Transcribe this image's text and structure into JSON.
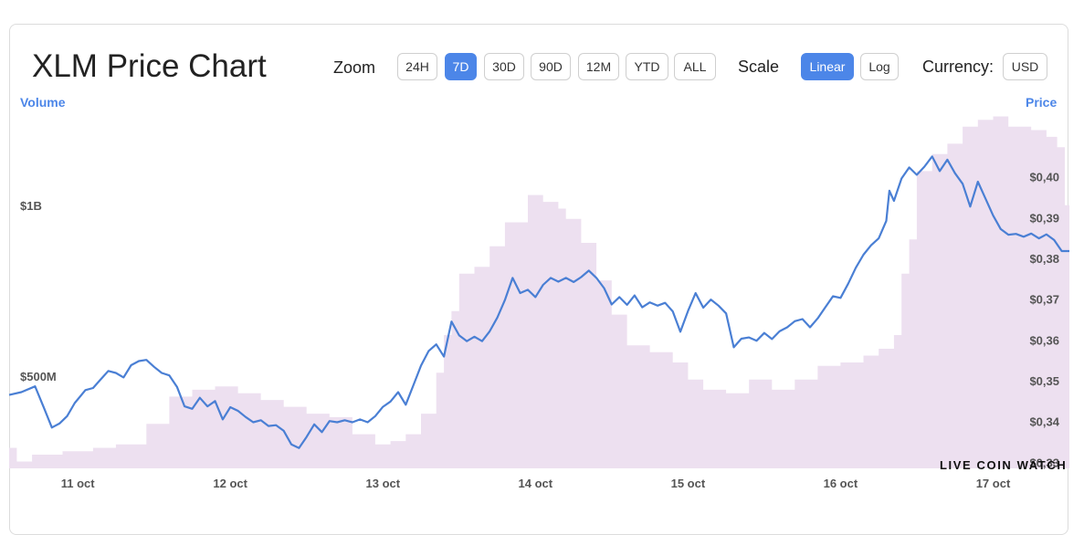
{
  "header": {
    "title": "XLM Price Chart",
    "zoom_label": "Zoom",
    "zoom_options": [
      "24H",
      "7D",
      "30D",
      "90D",
      "12M",
      "YTD",
      "ALL"
    ],
    "zoom_selected": "7D",
    "scale_label": "Scale",
    "scale_options": [
      "Linear",
      "Log"
    ],
    "scale_selected": "Linear",
    "currency_label": "Currency:",
    "currency_value": "USD"
  },
  "watermark": "LIVE COIN WATCH",
  "colors": {
    "accent": "#4c86e8",
    "price_line": "#4a7fd4",
    "volume_fill": "#ede0f0"
  },
  "chart_data": {
    "type": "line",
    "left_axis_title": "Volume",
    "right_axis_title": "Price",
    "x_tick_labels": [
      "11 oct",
      "12 oct",
      "13 oct",
      "14 oct",
      "15 oct",
      "16 oct",
      "17 oct"
    ],
    "x_range": [
      10.55,
      17.5
    ],
    "y_price_ticks": [
      "$0,40",
      "$0,39",
      "$0,38",
      "$0,37",
      "$0,36",
      "$0,35",
      "$0,34",
      "$0,33"
    ],
    "y_price_range": [
      0.3285,
      0.4165
    ],
    "y_volume_ticks": [
      "$1B",
      "$500M"
    ],
    "y_volume_range": [
      230000000,
      1280000000
    ],
    "grid": false,
    "series": [
      {
        "kind": "line",
        "axis": "price",
        "points": [
          [
            10.55,
            0.3465
          ],
          [
            10.63,
            0.3472
          ],
          [
            10.72,
            0.3486
          ],
          [
            10.78,
            0.3432
          ],
          [
            10.83,
            0.3385
          ],
          [
            10.88,
            0.3395
          ],
          [
            10.93,
            0.3413
          ],
          [
            10.98,
            0.3445
          ],
          [
            11.05,
            0.3477
          ],
          [
            11.1,
            0.3482
          ],
          [
            11.15,
            0.3503
          ],
          [
            11.2,
            0.3524
          ],
          [
            11.25,
            0.3519
          ],
          [
            11.3,
            0.3508
          ],
          [
            11.35,
            0.3538
          ],
          [
            11.4,
            0.3548
          ],
          [
            11.45,
            0.3551
          ],
          [
            11.5,
            0.3534
          ],
          [
            11.55,
            0.3519
          ],
          [
            11.6,
            0.3513
          ],
          [
            11.65,
            0.3485
          ],
          [
            11.7,
            0.3437
          ],
          [
            11.75,
            0.3431
          ],
          [
            11.8,
            0.3458
          ],
          [
            11.85,
            0.3437
          ],
          [
            11.9,
            0.345
          ],
          [
            11.95,
            0.3405
          ],
          [
            12.0,
            0.3435
          ],
          [
            12.05,
            0.3426
          ],
          [
            12.1,
            0.3411
          ],
          [
            12.15,
            0.3398
          ],
          [
            12.2,
            0.3403
          ],
          [
            12.25,
            0.3389
          ],
          [
            12.3,
            0.3391
          ],
          [
            12.35,
            0.3377
          ],
          [
            12.4,
            0.3344
          ],
          [
            12.45,
            0.3335
          ],
          [
            12.5,
            0.3362
          ],
          [
            12.55,
            0.3393
          ],
          [
            12.6,
            0.3374
          ],
          [
            12.65,
            0.3401
          ],
          [
            12.7,
            0.3398
          ],
          [
            12.75,
            0.3403
          ],
          [
            12.8,
            0.3398
          ],
          [
            12.85,
            0.3405
          ],
          [
            12.9,
            0.3398
          ],
          [
            12.95,
            0.3413
          ],
          [
            13.0,
            0.3436
          ],
          [
            13.05,
            0.3449
          ],
          [
            13.1,
            0.3472
          ],
          [
            13.15,
            0.3441
          ],
          [
            13.2,
            0.3489
          ],
          [
            13.25,
            0.3537
          ],
          [
            13.3,
            0.3573
          ],
          [
            13.35,
            0.3589
          ],
          [
            13.4,
            0.3559
          ],
          [
            13.45,
            0.3645
          ],
          [
            13.5,
            0.3611
          ],
          [
            13.55,
            0.3597
          ],
          [
            13.6,
            0.3608
          ],
          [
            13.65,
            0.3597
          ],
          [
            13.7,
            0.3621
          ],
          [
            13.75,
            0.3655
          ],
          [
            13.8,
            0.3698
          ],
          [
            13.85,
            0.3752
          ],
          [
            13.9,
            0.3715
          ],
          [
            13.95,
            0.3723
          ],
          [
            14.0,
            0.3705
          ],
          [
            14.05,
            0.3735
          ],
          [
            14.1,
            0.3752
          ],
          [
            14.15,
            0.3743
          ],
          [
            14.2,
            0.3752
          ],
          [
            14.25,
            0.3742
          ],
          [
            14.3,
            0.3754
          ],
          [
            14.35,
            0.377
          ],
          [
            14.4,
            0.3752
          ],
          [
            14.45,
            0.3727
          ],
          [
            14.5,
            0.3687
          ],
          [
            14.55,
            0.3705
          ],
          [
            14.6,
            0.3686
          ],
          [
            14.65,
            0.3709
          ],
          [
            14.7,
            0.368
          ],
          [
            14.75,
            0.3692
          ],
          [
            14.8,
            0.3684
          ],
          [
            14.85,
            0.3691
          ],
          [
            14.9,
            0.367
          ],
          [
            14.95,
            0.362
          ],
          [
            15.0,
            0.3671
          ],
          [
            15.05,
            0.3715
          ],
          [
            15.1,
            0.3679
          ],
          [
            15.15,
            0.3699
          ],
          [
            15.2,
            0.3684
          ],
          [
            15.25,
            0.3665
          ],
          [
            15.3,
            0.3582
          ],
          [
            15.35,
            0.3603
          ],
          [
            15.4,
            0.3606
          ],
          [
            15.45,
            0.3598
          ],
          [
            15.5,
            0.3617
          ],
          [
            15.55,
            0.3602
          ],
          [
            15.6,
            0.3621
          ],
          [
            15.65,
            0.3631
          ],
          [
            15.7,
            0.3646
          ],
          [
            15.75,
            0.3651
          ],
          [
            15.8,
            0.3631
          ],
          [
            15.85,
            0.3653
          ],
          [
            15.9,
            0.368
          ],
          [
            15.95,
            0.3707
          ],
          [
            16.0,
            0.3703
          ],
          [
            16.05,
            0.3738
          ],
          [
            16.1,
            0.3777
          ],
          [
            16.15,
            0.3809
          ],
          [
            16.2,
            0.3832
          ],
          [
            16.25,
            0.3849
          ],
          [
            16.3,
            0.3892
          ],
          [
            16.32,
            0.3966
          ],
          [
            16.35,
            0.3941
          ],
          [
            16.4,
            0.3996
          ],
          [
            16.45,
            0.4023
          ],
          [
            16.5,
            0.4005
          ],
          [
            16.55,
            0.4025
          ],
          [
            16.6,
            0.405
          ],
          [
            16.65,
            0.4014
          ],
          [
            16.7,
            0.4042
          ],
          [
            16.75,
            0.4009
          ],
          [
            16.8,
            0.3983
          ],
          [
            16.85,
            0.3927
          ],
          [
            16.9,
            0.3988
          ],
          [
            16.95,
            0.3947
          ],
          [
            17.0,
            0.3905
          ],
          [
            17.05,
            0.3872
          ],
          [
            17.1,
            0.3858
          ],
          [
            17.15,
            0.386
          ],
          [
            17.2,
            0.3853
          ],
          [
            17.25,
            0.3861
          ],
          [
            17.3,
            0.3849
          ],
          [
            17.35,
            0.3859
          ],
          [
            17.4,
            0.3845
          ],
          [
            17.45,
            0.3818
          ],
          [
            17.5,
            0.3818
          ]
        ]
      },
      {
        "kind": "area",
        "axis": "volume",
        "points": [
          [
            10.55,
            290000000
          ],
          [
            10.6,
            250000000
          ],
          [
            10.7,
            270000000
          ],
          [
            10.9,
            280000000
          ],
          [
            11.1,
            290000000
          ],
          [
            11.25,
            300000000
          ],
          [
            11.45,
            360000000
          ],
          [
            11.6,
            440000000
          ],
          [
            11.75,
            460000000
          ],
          [
            11.9,
            470000000
          ],
          [
            12.05,
            450000000
          ],
          [
            12.2,
            430000000
          ],
          [
            12.35,
            410000000
          ],
          [
            12.5,
            390000000
          ],
          [
            12.65,
            380000000
          ],
          [
            12.8,
            330000000
          ],
          [
            12.95,
            300000000
          ],
          [
            13.05,
            310000000
          ],
          [
            13.15,
            330000000
          ],
          [
            13.25,
            390000000
          ],
          [
            13.35,
            510000000
          ],
          [
            13.4,
            620000000
          ],
          [
            13.45,
            690000000
          ],
          [
            13.5,
            800000000
          ],
          [
            13.6,
            820000000
          ],
          [
            13.7,
            880000000
          ],
          [
            13.8,
            950000000
          ],
          [
            13.9,
            950000000
          ],
          [
            13.95,
            1030000000
          ],
          [
            14.05,
            1010000000
          ],
          [
            14.15,
            990000000
          ],
          [
            14.2,
            960000000
          ],
          [
            14.3,
            890000000
          ],
          [
            14.4,
            780000000
          ],
          [
            14.5,
            680000000
          ],
          [
            14.6,
            590000000
          ],
          [
            14.75,
            570000000
          ],
          [
            14.9,
            540000000
          ],
          [
            15.0,
            490000000
          ],
          [
            15.1,
            460000000
          ],
          [
            15.25,
            450000000
          ],
          [
            15.4,
            490000000
          ],
          [
            15.55,
            460000000
          ],
          [
            15.7,
            490000000
          ],
          [
            15.85,
            530000000
          ],
          [
            16.0,
            540000000
          ],
          [
            16.15,
            560000000
          ],
          [
            16.25,
            580000000
          ],
          [
            16.35,
            620000000
          ],
          [
            16.4,
            800000000
          ],
          [
            16.45,
            900000000
          ],
          [
            16.5,
            1100000000
          ],
          [
            16.6,
            1150000000
          ],
          [
            16.7,
            1180000000
          ],
          [
            16.8,
            1230000000
          ],
          [
            16.9,
            1250000000
          ],
          [
            17.0,
            1260000000
          ],
          [
            17.1,
            1230000000
          ],
          [
            17.25,
            1220000000
          ],
          [
            17.35,
            1200000000
          ],
          [
            17.42,
            1170000000
          ],
          [
            17.47,
            1000000000
          ],
          [
            17.5,
            960000000
          ]
        ]
      }
    ]
  }
}
